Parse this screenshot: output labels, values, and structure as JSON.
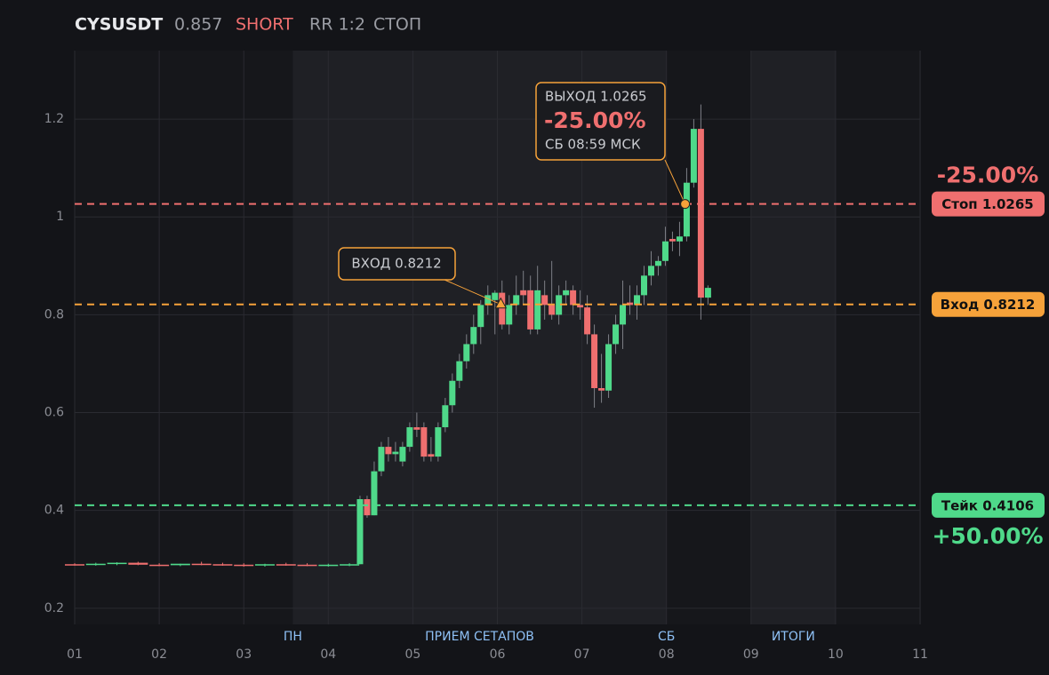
{
  "chart_data": {
    "type": "candlestick",
    "header": {
      "symbol": "CYSUSDT",
      "price": 0.857,
      "side": "SHORT",
      "rr": "RR 1:2",
      "status": "СТОП"
    },
    "up_color": "#4fd98a",
    "down_color": "#ef6f6f",
    "xlim": [
      1,
      11
    ],
    "xticks": [
      {
        "value": 1,
        "label": "01"
      },
      {
        "value": 2,
        "label": "02"
      },
      {
        "value": 3,
        "label": "03"
      },
      {
        "value": 4,
        "label": "04"
      },
      {
        "value": 5,
        "label": "05"
      },
      {
        "value": 6,
        "label": "06"
      },
      {
        "value": 7,
        "label": "07"
      },
      {
        "value": 8,
        "label": "08"
      },
      {
        "value": 9,
        "label": "09"
      },
      {
        "value": 10,
        "label": "10"
      },
      {
        "value": 11,
        "label": "11"
      }
    ],
    "ylim": [
      0.167,
      1.34
    ],
    "yticks": [
      0.2,
      0.4,
      0.6,
      0.8,
      1,
      1.2
    ],
    "grid": true,
    "shaded_ranges": [
      {
        "start": 3.58,
        "end": 8.0
      },
      {
        "start": 9.0,
        "end": 10.0
      }
    ],
    "period_labels": [
      {
        "text": "ПН",
        "x": 3.58
      },
      {
        "text": "ПРИЕМ СЕТАПОВ",
        "x": 5.79
      },
      {
        "text": "СБ",
        "x": 8.0
      },
      {
        "text": "ИТОГИ",
        "x": 9.5
      }
    ],
    "x": [
      1.0,
      1.25,
      1.5,
      1.75,
      2.0,
      2.25,
      2.5,
      2.75,
      3.0,
      3.25,
      3.5,
      3.75,
      4.0,
      4.25,
      4.375,
      4.459,
      4.543,
      4.627,
      4.711,
      4.795,
      4.879,
      4.963,
      5.047,
      5.131,
      5.215,
      5.299,
      5.383,
      5.467,
      5.551,
      5.635,
      5.719,
      5.803,
      5.887,
      5.971,
      6.055,
      6.139,
      6.223,
      6.307,
      6.391,
      6.475,
      6.559,
      6.643,
      6.727,
      6.811,
      6.895,
      6.979,
      7.063,
      7.147,
      7.231,
      7.315,
      7.399,
      7.483,
      7.567,
      7.651,
      7.735,
      7.819,
      7.903,
      7.987,
      8.071,
      8.155,
      8.239,
      8.323,
      8.407,
      8.491
    ],
    "open": [
      0.29,
      0.289,
      0.291,
      0.293,
      0.289,
      0.288,
      0.291,
      0.29,
      0.289,
      0.288,
      0.29,
      0.289,
      0.288,
      0.289,
      0.29,
      0.423,
      0.39,
      0.48,
      0.53,
      0.515,
      0.5,
      0.53,
      0.57,
      0.57,
      0.515,
      0.51,
      0.57,
      0.615,
      0.665,
      0.705,
      0.74,
      0.775,
      0.82,
      0.83,
      0.845,
      0.78,
      0.82,
      0.85,
      0.85,
      0.77,
      0.84,
      0.82,
      0.8,
      0.84,
      0.85,
      0.82,
      0.815,
      0.76,
      0.65,
      0.645,
      0.74,
      0.78,
      0.825,
      0.82,
      0.84,
      0.88,
      0.9,
      0.91,
      0.955,
      0.95,
      0.96,
      1.07,
      1.18,
      0.835
    ],
    "high": [
      0.292,
      0.293,
      0.294,
      0.295,
      0.292,
      0.291,
      0.295,
      0.293,
      0.292,
      0.291,
      0.293,
      0.292,
      0.291,
      0.292,
      0.43,
      0.43,
      0.5,
      0.54,
      0.55,
      0.54,
      0.54,
      0.58,
      0.6,
      0.58,
      0.55,
      0.58,
      0.63,
      0.68,
      0.72,
      0.76,
      0.8,
      0.83,
      0.86,
      0.85,
      0.87,
      0.84,
      0.88,
      0.89,
      0.88,
      0.9,
      0.87,
      0.91,
      0.86,
      0.87,
      0.86,
      0.85,
      0.84,
      0.78,
      0.72,
      0.76,
      0.8,
      0.87,
      0.86,
      0.86,
      0.9,
      0.93,
      0.92,
      0.98,
      0.97,
      0.99,
      1.1,
      1.2,
      1.23,
      0.86
    ],
    "low": [
      0.287,
      0.287,
      0.288,
      0.288,
      0.286,
      0.286,
      0.288,
      0.287,
      0.285,
      0.285,
      0.287,
      0.286,
      0.285,
      0.286,
      0.29,
      0.385,
      0.39,
      0.47,
      0.5,
      0.5,
      0.49,
      0.52,
      0.55,
      0.5,
      0.5,
      0.5,
      0.56,
      0.6,
      0.65,
      0.69,
      0.72,
      0.74,
      0.8,
      0.76,
      0.77,
      0.76,
      0.8,
      0.82,
      0.76,
      0.76,
      0.79,
      0.79,
      0.78,
      0.82,
      0.8,
      0.79,
      0.74,
      0.61,
      0.62,
      0.63,
      0.72,
      0.73,
      0.8,
      0.79,
      0.82,
      0.86,
      0.88,
      0.9,
      0.93,
      0.92,
      0.95,
      1.06,
      0.79,
      0.82
    ],
    "close": [
      0.289,
      0.291,
      0.293,
      0.289,
      0.288,
      0.291,
      0.29,
      0.289,
      0.288,
      0.29,
      0.289,
      0.288,
      0.289,
      0.29,
      0.423,
      0.39,
      0.48,
      0.53,
      0.515,
      0.52,
      0.53,
      0.57,
      0.565,
      0.51,
      0.51,
      0.57,
      0.615,
      0.665,
      0.705,
      0.74,
      0.775,
      0.82,
      0.84,
      0.845,
      0.78,
      0.82,
      0.84,
      0.84,
      0.77,
      0.85,
      0.82,
      0.8,
      0.84,
      0.85,
      0.82,
      0.815,
      0.76,
      0.65,
      0.645,
      0.74,
      0.78,
      0.82,
      0.82,
      0.84,
      0.88,
      0.9,
      0.91,
      0.95,
      0.95,
      0.96,
      1.07,
      1.18,
      0.835,
      0.855
    ],
    "levels": [
      {
        "value": 1.0265,
        "label": "Стоп 1.0265",
        "color": "#ef6f6f",
        "pct": {
          "value": -25,
          "label": "-25.00%"
        }
      },
      {
        "value": 0.8212,
        "label": "Вход 0.8212",
        "color": "#f6a23a"
      },
      {
        "value": 0.4106,
        "label": "Тейк 0.4106",
        "color": "#4fd98a",
        "pct": {
          "value": 50,
          "label": "+50.00%"
        }
      }
    ],
    "entry": {
      "label": "ВХОД 0.8212",
      "x": 6.04,
      "y": 0.8212
    },
    "exit": {
      "label": "ВЫХОД 1.0265",
      "pct": {
        "value": -25,
        "label": "-25.00%"
      },
      "time": "СБ 08:59 МСК",
      "x": 8.22,
      "y": 1.0265
    }
  }
}
